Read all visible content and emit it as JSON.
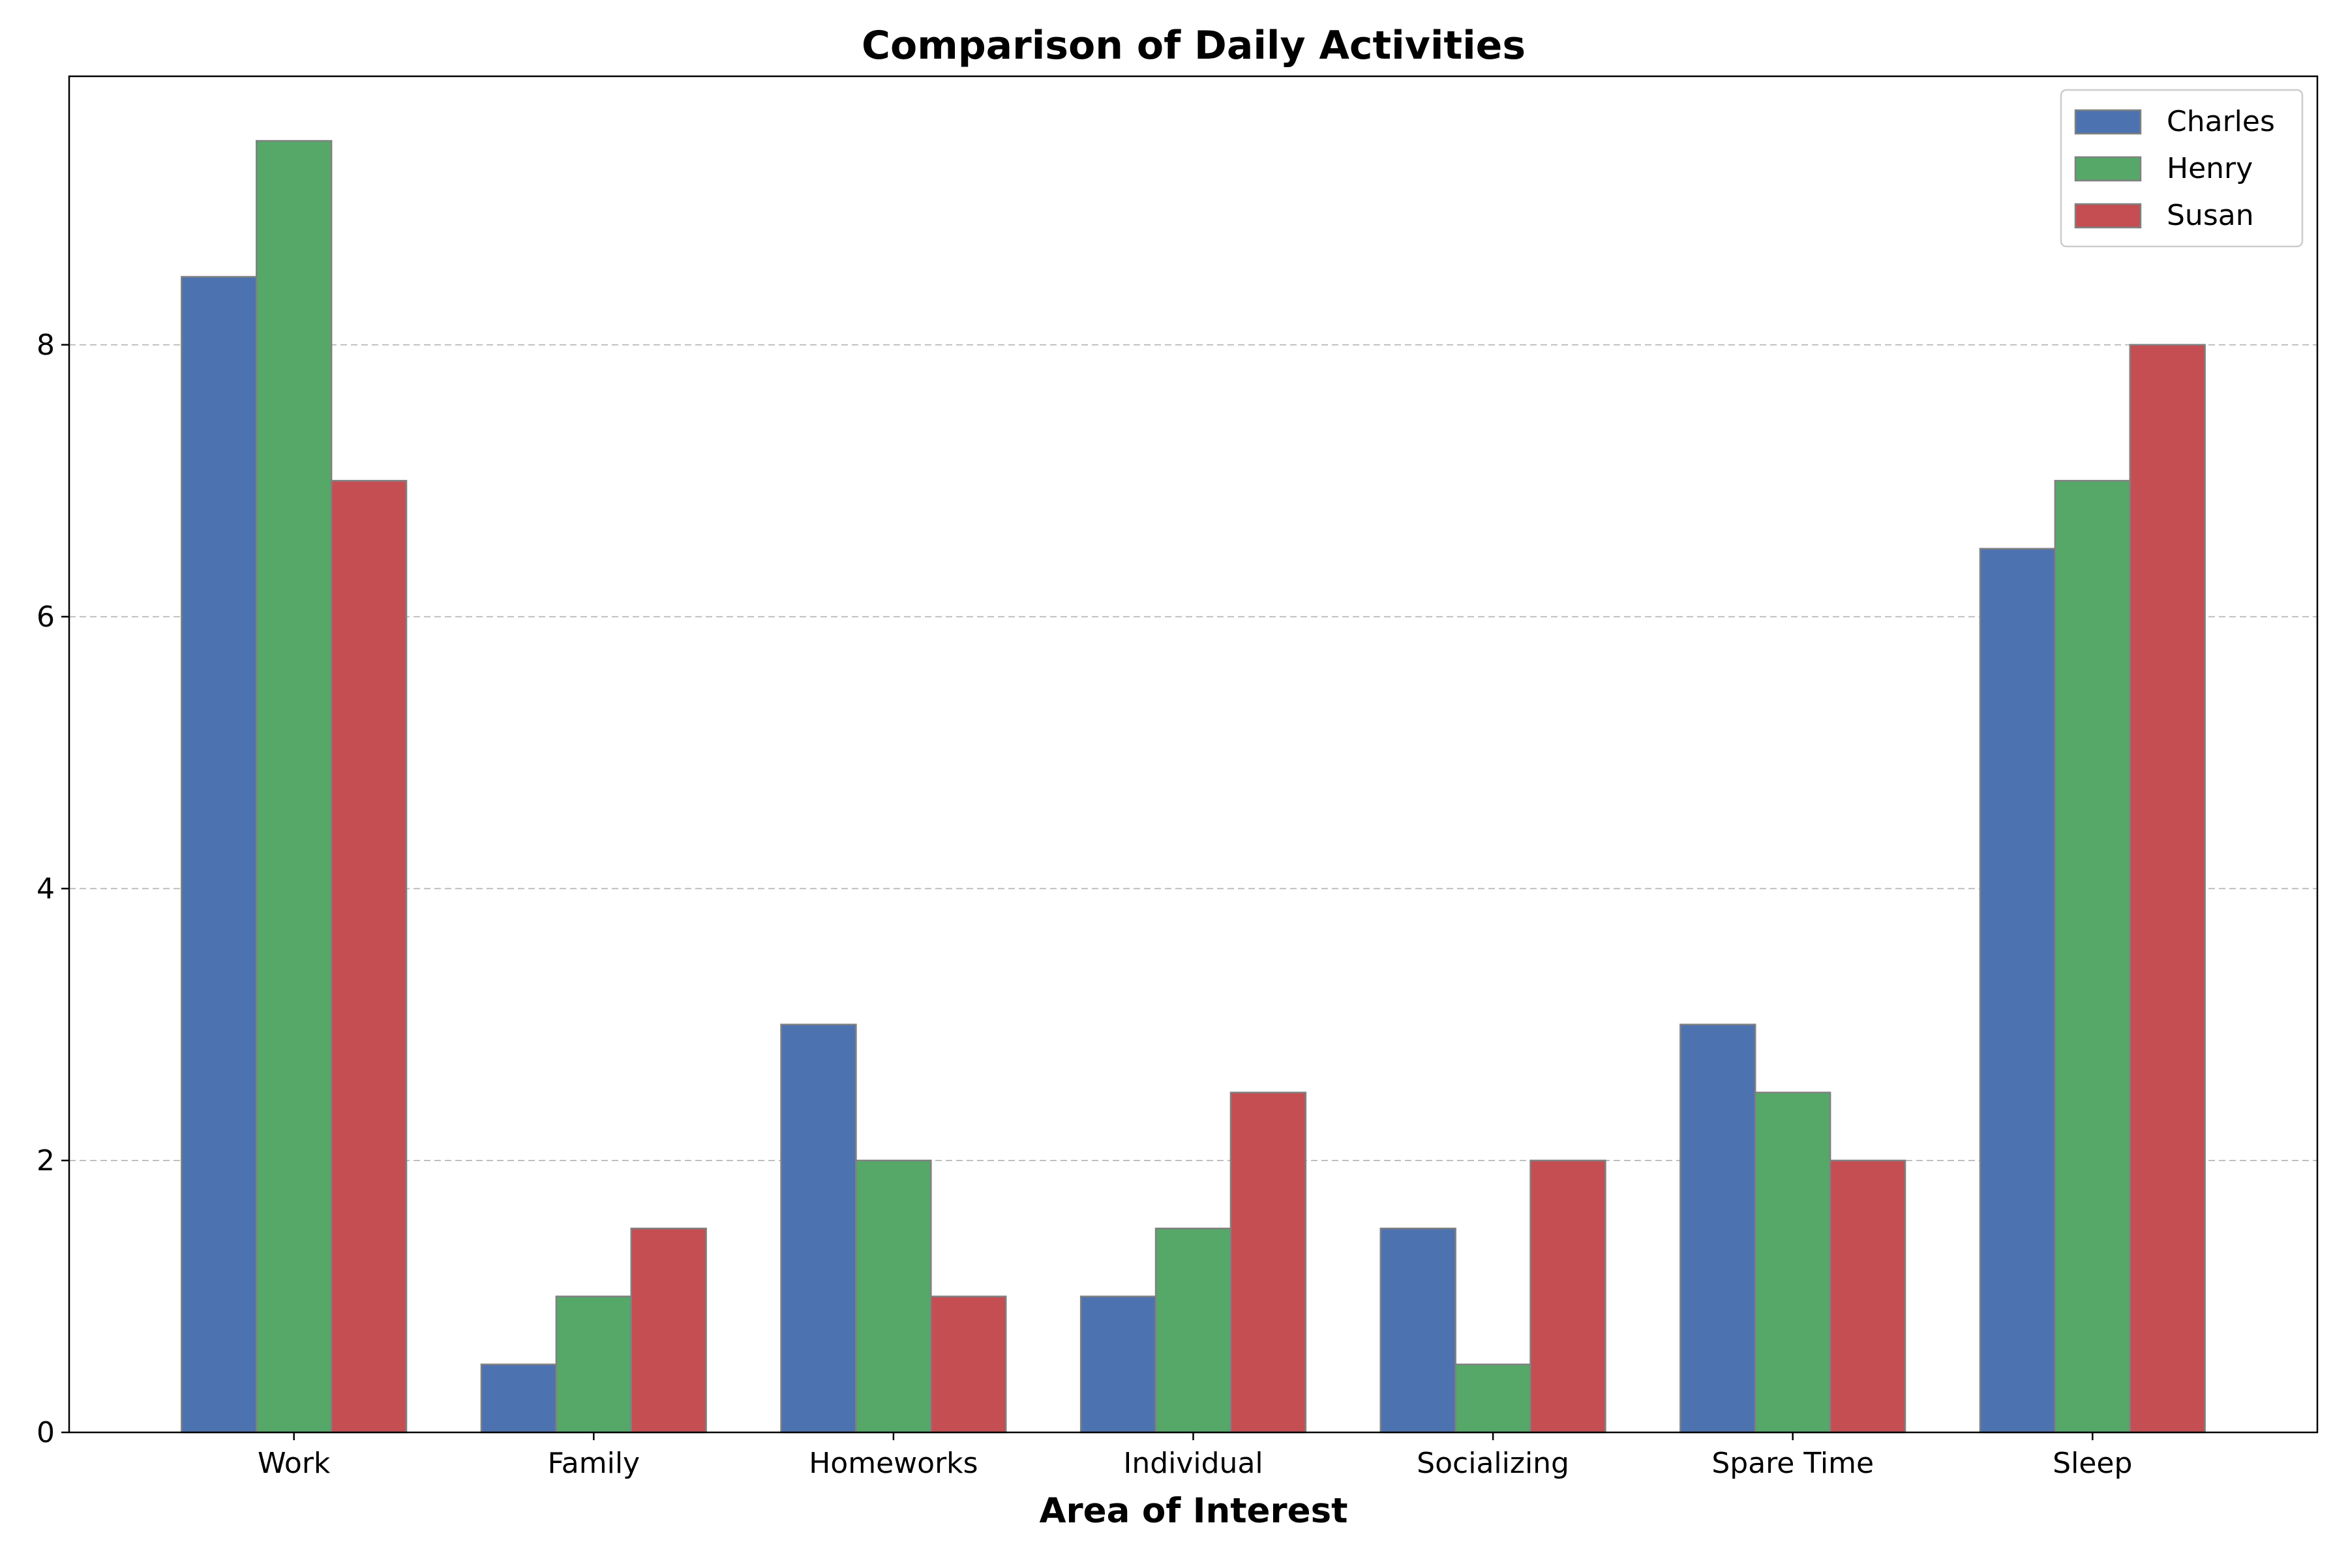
{
  "chart_data": {
    "type": "bar",
    "title": "Comparison of Daily Activities",
    "xlabel": "Area of Interest",
    "ylabel": "",
    "categories": [
      "Work",
      "Family",
      "Homeworks",
      "Individual",
      "Socializing",
      "Spare Time",
      "Sleep"
    ],
    "series": [
      {
        "name": "Charles",
        "color": "#4c72b0",
        "values": [
          8.5,
          0.5,
          3,
          1,
          1.5,
          3,
          6.5
        ]
      },
      {
        "name": "Henry",
        "color": "#55a868",
        "values": [
          9.5,
          1,
          2,
          1.5,
          0.5,
          2.5,
          7
        ]
      },
      {
        "name": "Susan",
        "color": "#c44e52",
        "values": [
          7,
          1.5,
          1,
          2.5,
          2,
          2,
          8
        ]
      }
    ],
    "ylim": [
      0,
      9.975
    ],
    "yticks": [
      0,
      2,
      4,
      6,
      8
    ],
    "grid": "y-dashed",
    "legend_position": "top-right",
    "bar_edge_color": "#808080"
  }
}
